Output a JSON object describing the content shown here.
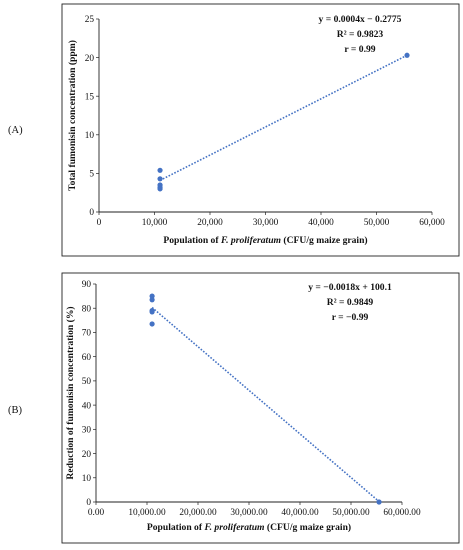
{
  "chart_data": [
    {
      "type": "scatter",
      "panel_label": "(A)",
      "xlabel_prefix": "Population of ",
      "xlabel_species": "F. proliferatum",
      "xlabel_suffix": " (CFU/g maize grain)",
      "ylabel": "Total fumonisin concentration (ppm)",
      "xlim": [
        0,
        60000
      ],
      "ylim": [
        0,
        25
      ],
      "x_ticks": [
        0,
        10000,
        20000,
        30000,
        40000,
        50000,
        60000
      ],
      "x_tick_labels": [
        "0",
        "10,000",
        "20,000",
        "30,000",
        "40,000",
        "50,000",
        "60,000"
      ],
      "y_ticks": [
        0,
        5,
        10,
        15,
        20,
        25
      ],
      "y_tick_labels": [
        "0",
        "5",
        "10",
        "15",
        "20",
        "25"
      ],
      "points": [
        {
          "x": 11000,
          "y": 5.4
        },
        {
          "x": 11000,
          "y": 4.3
        },
        {
          "x": 11000,
          "y": 3.5
        },
        {
          "x": 11000,
          "y": 3.2
        },
        {
          "x": 11000,
          "y": 3.0
        },
        {
          "x": 55500,
          "y": 20.3
        }
      ],
      "trendline": {
        "x": [
          11000,
          55500
        ],
        "y": [
          4.1,
          20.3
        ]
      },
      "annotations": [
        "y = 0.0004x − 0.2775",
        "R² = 0.9823",
        "r = 0.99"
      ],
      "grid": false,
      "color": "#4472C4"
    },
    {
      "type": "scatter",
      "panel_label": "(B)",
      "xlabel_prefix": "Population of ",
      "xlabel_species": "F. proliferatum",
      "xlabel_suffix": " (CFU/g maize grain)",
      "ylabel": "Reduction of fumonisin concentration (%)",
      "xlim": [
        0,
        60000
      ],
      "ylim": [
        0,
        90
      ],
      "x_ticks": [
        0,
        10000,
        20000,
        30000,
        40000,
        50000,
        60000
      ],
      "x_tick_labels": [
        "0.00",
        "10,000.00",
        "20,000.00",
        "30,000.00",
        "40,000.00",
        "50,000.00",
        "60,000.00"
      ],
      "y_ticks": [
        0,
        10,
        20,
        30,
        40,
        50,
        60,
        70,
        80,
        90
      ],
      "y_tick_labels": [
        "0",
        "10",
        "20",
        "30",
        "40",
        "50",
        "60",
        "70",
        "80",
        "90"
      ],
      "points": [
        {
          "x": 11000,
          "y": 85
        },
        {
          "x": 11000,
          "y": 83.5
        },
        {
          "x": 11000,
          "y": 79
        },
        {
          "x": 11000,
          "y": 78.5
        },
        {
          "x": 11000,
          "y": 73.5
        },
        {
          "x": 55500,
          "y": 0
        }
      ],
      "trendline": {
        "x": [
          11000,
          55500
        ],
        "y": [
          80.3,
          0.2
        ]
      },
      "annotations": [
        "y = −0.0018x + 100.1",
        "R² = 0.9849",
        "r = −0.99"
      ],
      "grid": false,
      "color": "#4472C4"
    }
  ]
}
